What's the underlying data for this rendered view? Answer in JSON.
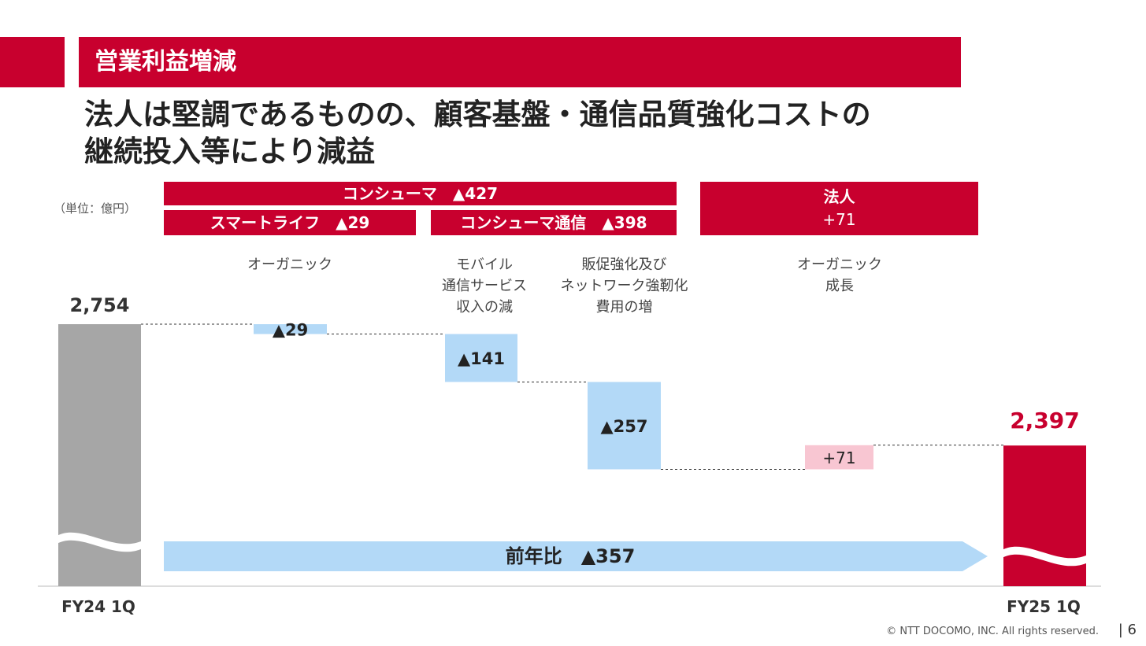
{
  "header": {
    "section_title": "営業利益増減"
  },
  "headline": {
    "line1": "法人は堅調であるものの、顧客基盤・通信品質強化コストの",
    "line2": "継続投入等により減益"
  },
  "unit": "（単位：億円）",
  "segments": {
    "consumer": "コンシューマ　▲427",
    "smartlife": "スマートライフ　▲29",
    "consumer_comm": "コンシューマ通信　▲398",
    "corporate_name": "法人",
    "corporate_value": "+71"
  },
  "step_labels": {
    "organic": "オーガニック",
    "mobile": "モバイル\n通信サービス\n収入の減",
    "sales": "販促強化及び\nネットワーク強靭化\n費用の増",
    "corp_organic": "オーガニック\n成長"
  },
  "colors": {
    "brand_red": "#c8002e",
    "gray_bar": "#a6a6a6",
    "negative": "#b3d9f7",
    "positive": "#f8c6d2",
    "arrow": "#b3d9f7"
  },
  "chart_data": {
    "type": "waterfall",
    "start": {
      "label": "FY24 1Q",
      "value": 2754,
      "value_label": "2,754"
    },
    "steps": [
      {
        "name": "オーガニック",
        "value": -29,
        "value_label": "▲29"
      },
      {
        "name": "モバイル通信サービス収入の減",
        "value": -141,
        "value_label": "▲141"
      },
      {
        "name": "販促強化及びネットワーク強靭化費用の増",
        "value": -257,
        "value_label": "▲257"
      },
      {
        "name": "オーガニック成長",
        "value": 71,
        "value_label": "+71"
      }
    ],
    "end": {
      "label": "FY25 1Q",
      "value": 2397,
      "value_label": "2,397"
    },
    "yoy_label": "前年比　▲357",
    "yoy_value": -357
  },
  "footer": {
    "copyright": "© NTT DOCOMO, INC.  All rights reserved.",
    "page": "|   6"
  }
}
